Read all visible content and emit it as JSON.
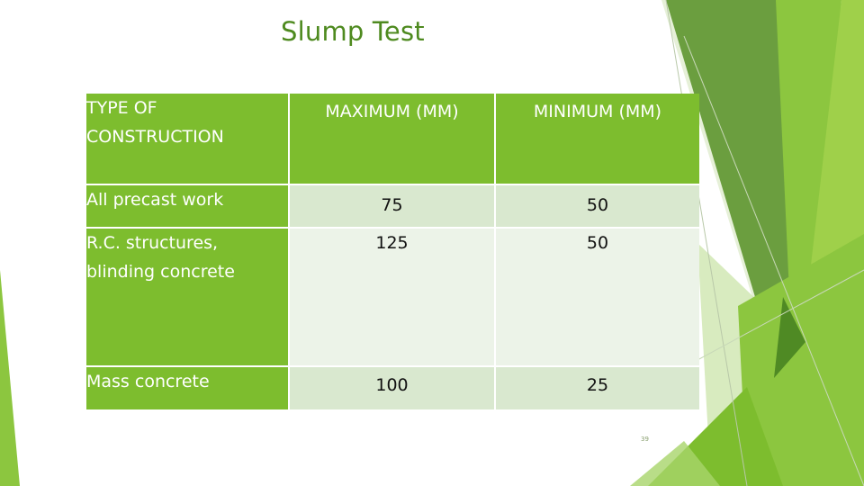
{
  "slide": {
    "title": "Slump Test",
    "page_number": "39",
    "accent_colors": {
      "header_green": "#7dbd2e",
      "row_light": "#d9e8cf",
      "row_lighter": "#ecf3e8",
      "title_green": "#4e8a1f",
      "deco_dark_green": "#6b9e3f",
      "deco_bright_green": "#8cc63f"
    }
  },
  "table": {
    "headers": [
      "TYPE OF CONSTRUCTION",
      "MAXIMUM (MM)",
      "MINIMUM (MM)"
    ],
    "rows": [
      {
        "type": "All precast work",
        "max": "75",
        "min": "50"
      },
      {
        "type": "R.C. structures, blinding concrete",
        "max": "125",
        "min": "50"
      },
      {
        "type": "Mass concrete",
        "max": "100",
        "min": "25"
      }
    ]
  }
}
